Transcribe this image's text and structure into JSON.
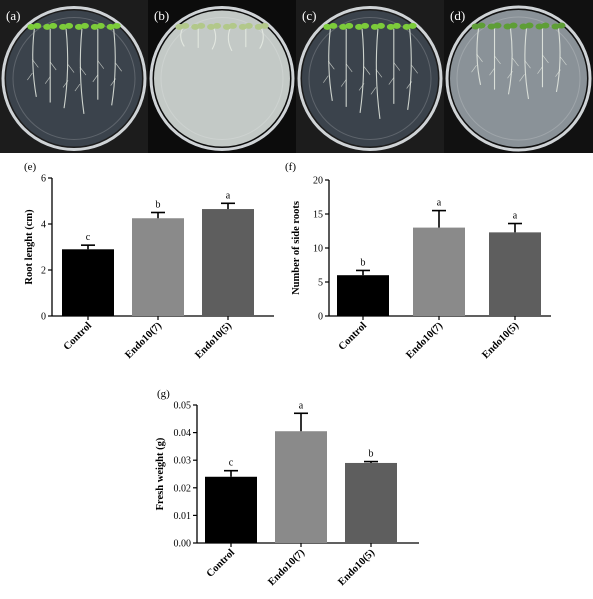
{
  "photos": {
    "panels": [
      {
        "label": "(a)",
        "background": "#1c1c1c",
        "agar": "#3b434c",
        "seedlings": 6,
        "root_len": 0.85,
        "leaf": "#7ccc3a"
      },
      {
        "label": "(b)",
        "background": "#0c0c0c",
        "agar": "#c3c9c6",
        "seedlings": 6,
        "root_len": 0.22,
        "leaf": "#b2c88a"
      },
      {
        "label": "(c)",
        "background": "#1c1c1c",
        "agar": "#3b434c",
        "seedlings": 6,
        "root_len": 0.9,
        "leaf": "#7ccc3a"
      },
      {
        "label": "(d)",
        "background": "#111111",
        "agar": "#8a9298",
        "seedlings": 6,
        "root_len": 0.7,
        "leaf": "#5e9e36"
      }
    ]
  },
  "chart_data": [
    {
      "type": "bar",
      "panel": "(e)",
      "categories": [
        "Control",
        "Endo10(7)",
        "Endo10(5)"
      ],
      "values": [
        2.9,
        4.25,
        4.65
      ],
      "errors": [
        0.18,
        0.25,
        0.25
      ],
      "letters": [
        "c",
        "b",
        "a"
      ],
      "colors": [
        "#000000",
        "#8a8a8a",
        "#5e5e5e"
      ],
      "xlabel": "",
      "ylabel": "Root lenght (cm)",
      "ylim": [
        0,
        6
      ],
      "yticks": [
        "0",
        "2",
        "4",
        "6"
      ],
      "grid": false
    },
    {
      "type": "bar",
      "panel": "(f)",
      "categories": [
        "Control",
        "Endo10(7)",
        "Endo10(5)"
      ],
      "values": [
        6,
        13,
        12.3
      ],
      "errors": [
        0.7,
        2.5,
        1.3
      ],
      "letters": [
        "b",
        "a",
        "a"
      ],
      "colors": [
        "#000000",
        "#8a8a8a",
        "#5e5e5e"
      ],
      "xlabel": "",
      "ylabel": "Number of side roots",
      "ylim": [
        0,
        20
      ],
      "yticks": [
        "0",
        "5",
        "10",
        "15",
        "20"
      ],
      "grid": false
    },
    {
      "type": "bar",
      "panel": "(g)",
      "categories": [
        "Control",
        "Endo10(7)",
        "Endo10(5)"
      ],
      "values": [
        0.024,
        0.0405,
        0.029
      ],
      "errors": [
        0.0022,
        0.0065,
        0.0005
      ],
      "letters": [
        "c",
        "a",
        "b"
      ],
      "colors": [
        "#000000",
        "#8a8a8a",
        "#5e5e5e"
      ],
      "xlabel": "",
      "ylabel": "Fresh weight (g)",
      "ylim": [
        0,
        0.05
      ],
      "yticks": [
        "0.00",
        "0.01",
        "0.02",
        "0.03",
        "0.04",
        "0.05"
      ],
      "grid": false
    }
  ]
}
